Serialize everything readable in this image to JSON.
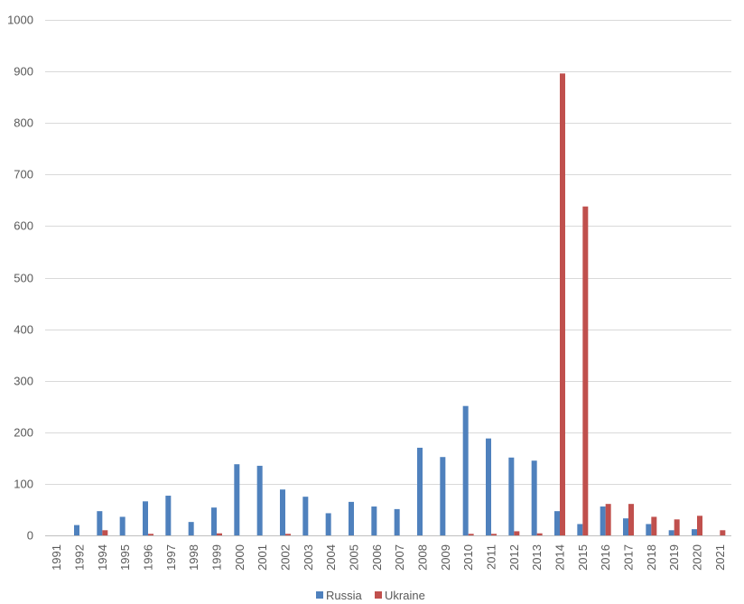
{
  "chart_data": {
    "type": "bar",
    "categories": [
      "1991",
      "1992",
      "1994",
      "1995",
      "1996",
      "1997",
      "1998",
      "1999",
      "2000",
      "2001",
      "2002",
      "2003",
      "2004",
      "2005",
      "2006",
      "2007",
      "2008",
      "2009",
      "2010",
      "2011",
      "2012",
      "2013",
      "2014",
      "2015",
      "2016",
      "2017",
      "2018",
      "2019",
      "2020",
      "2021"
    ],
    "series": [
      {
        "name": "Russia",
        "color": "#4f81bd",
        "values": [
          0,
          20,
          47,
          36,
          66,
          77,
          26,
          54,
          138,
          135,
          89,
          75,
          43,
          65,
          56,
          51,
          170,
          152,
          251,
          188,
          151,
          145,
          47,
          22,
          56,
          33,
          22,
          10,
          12,
          0
        ]
      },
      {
        "name": "Ukraine",
        "color": "#c0504d",
        "values": [
          0,
          0,
          10,
          0,
          3,
          0,
          0,
          4,
          0,
          0,
          3,
          0,
          0,
          0,
          0,
          0,
          0,
          0,
          3,
          3,
          8,
          4,
          896,
          638,
          61,
          61,
          36,
          31,
          38,
          10
        ]
      }
    ],
    "y_ticks": [
      "0",
      "100",
      "200",
      "300",
      "400",
      "500",
      "600",
      "700",
      "800",
      "900",
      "1000"
    ],
    "ylim": [
      0,
      1000
    ],
    "grid": true,
    "legend_position": "bottom"
  }
}
